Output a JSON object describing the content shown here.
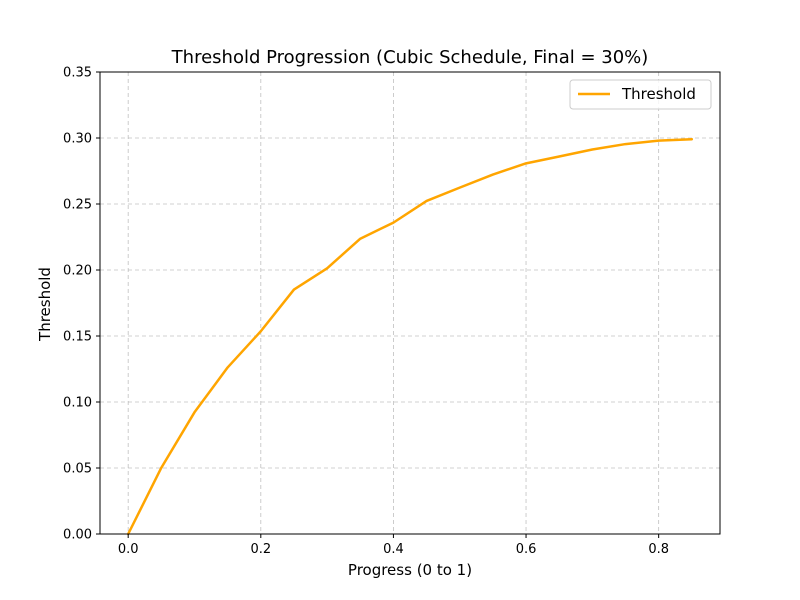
{
  "chart_data": {
    "type": "line",
    "title": "Threshold Progression (Cubic Schedule, Final = 30%)",
    "xlabel": "Progress (0 to 1)",
    "ylabel": "Threshold",
    "xlim": [
      -0.0425,
      0.8925
    ],
    "ylim": [
      0,
      0.35
    ],
    "x_ticks": [
      0.0,
      0.2,
      0.4,
      0.6,
      0.8
    ],
    "x_tick_labels": [
      "0.0",
      "0.2",
      "0.4",
      "0.6",
      "0.8"
    ],
    "y_ticks": [
      0.0,
      0.05,
      0.1,
      0.15,
      0.2,
      0.25,
      0.3,
      0.35
    ],
    "y_tick_labels": [
      "0.00",
      "0.05",
      "0.10",
      "0.15",
      "0.20",
      "0.25",
      "0.30",
      "0.35"
    ],
    "grid": true,
    "legend_position": "top-right",
    "series": [
      {
        "name": "Threshold",
        "color": "#ffa500",
        "x": [
          0.0,
          0.05,
          0.1,
          0.15,
          0.2,
          0.25,
          0.3,
          0.35,
          0.4,
          0.45,
          0.5,
          0.55,
          0.6,
          0.65,
          0.7,
          0.75,
          0.8,
          0.85
        ],
        "y": [
          0.0,
          0.0502,
          0.0922,
          0.1262,
          0.1536,
          0.1852,
          0.2013,
          0.2237,
          0.2359,
          0.2523,
          0.2624,
          0.2723,
          0.2808,
          0.286,
          0.2913,
          0.2954,
          0.298,
          0.2991
        ]
      }
    ]
  }
}
